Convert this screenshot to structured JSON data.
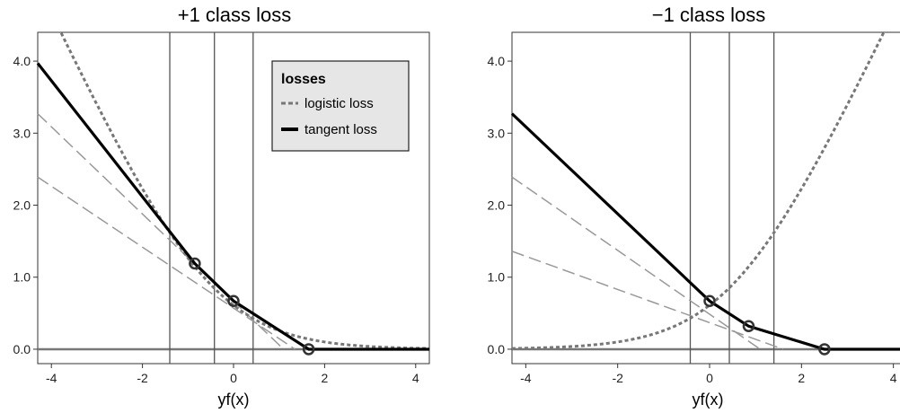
{
  "chart_data": [
    {
      "type": "line",
      "title": "+1 class loss",
      "xlabel": "yf(x)",
      "ylabel": "",
      "xlim": [
        -4.3,
        4.3
      ],
      "ylim": [
        -0.2,
        4.4
      ],
      "xticks": [
        -4,
        -2,
        0,
        2,
        4
      ],
      "xtick_labels": [
        "-4",
        "-2",
        "0",
        "2",
        "4"
      ],
      "yticks": [
        0,
        1,
        2,
        3,
        4
      ],
      "ytick_labels": [
        "0.0",
        "1.0",
        "2.0",
        "3.0",
        "4.0"
      ],
      "tangent_points": [
        -0.85,
        0.0,
        1.65
      ],
      "breakpoints": [
        -1.4,
        -0.42,
        0.43
      ],
      "tangent_loss": [
        [
          -4.3,
          3.97
        ],
        [
          -0.85,
          1.19
        ],
        [
          0.0,
          0.67
        ],
        [
          1.65,
          0.0
        ],
        [
          4.3,
          0.0
        ]
      ],
      "tangent_lines": [
        {
          "x": [
            -4.3,
            1.1
          ],
          "y": [
            3.27,
            0.0
          ]
        },
        {
          "x": [
            -4.3,
            1.35
          ],
          "y": [
            2.39,
            0.0
          ]
        }
      ],
      "series": [
        {
          "name": "logistic loss",
          "style": "dotted",
          "color": "#777777"
        },
        {
          "name": "tangent loss",
          "style": "solid",
          "color": "#000000"
        }
      ],
      "legend": {
        "title": "losses",
        "placement": "top-right"
      },
      "grid": false
    },
    {
      "type": "line",
      "title": "−1 class loss",
      "xlabel": "yf(x)",
      "ylabel": "",
      "xlim": [
        -4.3,
        4.3
      ],
      "ylim": [
        -0.2,
        4.4
      ],
      "xticks": [
        -4,
        -2,
        0,
        2,
        4
      ],
      "xtick_labels": [
        "-4",
        "-2",
        "0",
        "2",
        "4"
      ],
      "yticks": [
        0,
        1,
        2,
        3,
        4
      ],
      "ytick_labels": [
        "0.0",
        "1.0",
        "2.0",
        "3.0",
        "4.0"
      ],
      "tangent_points": [
        0.0,
        0.85,
        2.5
      ],
      "breakpoints": [
        -0.42,
        0.43,
        1.4
      ],
      "tangent_loss": [
        [
          -4.3,
          3.27
        ],
        [
          0.0,
          0.67
        ],
        [
          0.85,
          0.32
        ],
        [
          2.5,
          0.0
        ],
        [
          4.3,
          0.0
        ]
      ],
      "tangent_lines": [
        {
          "x": [
            -4.3,
            1.1
          ],
          "y": [
            2.39,
            0.0
          ]
        },
        {
          "x": [
            -4.3,
            1.6
          ],
          "y": [
            1.36,
            0.0
          ]
        }
      ],
      "series": [
        {
          "name": "logistic loss",
          "style": "dotted",
          "color": "#777777"
        },
        {
          "name": "tangent loss",
          "style": "solid",
          "color": "#000000"
        }
      ],
      "legend": null,
      "grid": false
    }
  ]
}
